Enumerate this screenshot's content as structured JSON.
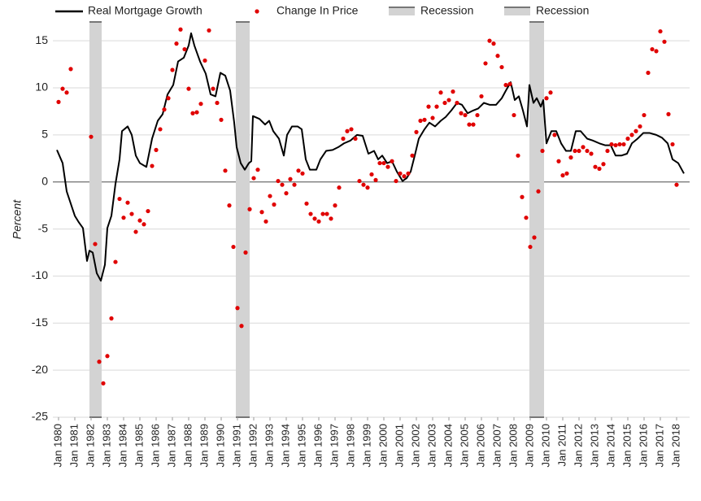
{
  "chart_data": {
    "type": "combo",
    "y_label": "Percent",
    "ylim": [
      -25,
      17
    ],
    "yticks": [
      -25,
      -20,
      -15,
      -10,
      -5,
      0,
      5,
      10,
      15
    ],
    "xlim": [
      1979.65,
      2018.8
    ],
    "xticks": [
      {
        "value": 1980,
        "label": "Jan 1980"
      },
      {
        "value": 1981,
        "label": "Jan 1981"
      },
      {
        "value": 1982,
        "label": "Jan 1982"
      },
      {
        "value": 1983,
        "label": "Jan 1983"
      },
      {
        "value": 1984,
        "label": "Jan 1984"
      },
      {
        "value": 1985,
        "label": "Jan 1985"
      },
      {
        "value": 1986,
        "label": "Jan 1986"
      },
      {
        "value": 1987,
        "label": "Jan 1987"
      },
      {
        "value": 1988,
        "label": "Jan 1988"
      },
      {
        "value": 1989,
        "label": "Jan 1989"
      },
      {
        "value": 1990,
        "label": "Jan 1990"
      },
      {
        "value": 1991,
        "label": "Jan 1991"
      },
      {
        "value": 1992,
        "label": "Jan 1992"
      },
      {
        "value": 1993,
        "label": "Jan 1993"
      },
      {
        "value": 1994,
        "label": "Jan 1994"
      },
      {
        "value": 1995,
        "label": "Jan 1995"
      },
      {
        "value": 1996,
        "label": "Jan 1996"
      },
      {
        "value": 1997,
        "label": "Jan 1997"
      },
      {
        "value": 1998,
        "label": "Jan 1998"
      },
      {
        "value": 1999,
        "label": "Jan 1999"
      },
      {
        "value": 2000,
        "label": "Jan 2000"
      },
      {
        "value": 2001,
        "label": "Jan 2001"
      },
      {
        "value": 2002,
        "label": "Jan 2002"
      },
      {
        "value": 2003,
        "label": "Jan 2003"
      },
      {
        "value": 2004,
        "label": "Jan 2004"
      },
      {
        "value": 2005,
        "label": "Jan 2005"
      },
      {
        "value": 2006,
        "label": "Jan 2006"
      },
      {
        "value": 2007,
        "label": "Jan 2007"
      },
      {
        "value": 2008,
        "label": "Jan 2008"
      },
      {
        "value": 2009,
        "label": "Jan 2009"
      },
      {
        "value": 2010,
        "label": "Jan 2010"
      },
      {
        "value": 2011,
        "label": "Jan 2011"
      },
      {
        "value": 2012,
        "label": "Jan 2012"
      },
      {
        "value": 2013,
        "label": "Jan 2013"
      },
      {
        "value": 2014,
        "label": "Jan 2014"
      },
      {
        "value": 2015,
        "label": "Jan 2015"
      },
      {
        "value": 2016,
        "label": "Jan 2016"
      },
      {
        "value": 2017,
        "label": "Jan 2017"
      },
      {
        "value": 2018,
        "label": "Jan 2018"
      }
    ],
    "grid": true,
    "recessions": [
      {
        "name": "Recession",
        "color": "#d3d3d3",
        "start": 1981.9,
        "end": 1982.65
      },
      {
        "name": "Recession",
        "color": "#d3d3d3",
        "start": 1990.9,
        "end": 1991.75
      },
      {
        "name": "Recession",
        "color": "#d3d3d3",
        "start": 2008.95,
        "end": 2009.85
      }
    ],
    "legend_recessions": [
      0,
      2
    ],
    "series": [
      {
        "name": "Real Mortgage Growth",
        "type": "line",
        "color": "#000000",
        "x": [
          1979.9,
          1980.25,
          1980.5,
          1980.75,
          1981.0,
          1981.25,
          1981.5,
          1981.75,
          1981.9,
          1982.1,
          1982.35,
          1982.6,
          1982.85,
          1983.0,
          1983.25,
          1983.5,
          1983.75,
          1983.9,
          1984.25,
          1984.5,
          1984.75,
          1985.0,
          1985.4,
          1985.75,
          1986.1,
          1986.4,
          1986.7,
          1987.05,
          1987.35,
          1987.7,
          1988.0,
          1988.15,
          1988.35,
          1988.7,
          1989.05,
          1989.35,
          1989.65,
          1989.95,
          1990.25,
          1990.55,
          1990.8,
          1990.95,
          1991.2,
          1991.45,
          1991.7,
          1991.85,
          1991.95,
          1992.35,
          1992.7,
          1992.95,
          1993.2,
          1993.55,
          1993.85,
          1994.05,
          1994.35,
          1994.7,
          1994.95,
          1995.2,
          1995.45,
          1995.85,
          1996.1,
          1996.45,
          1996.85,
          1997.2,
          1997.55,
          1997.95,
          1998.35,
          1998.7,
          1999.05,
          1999.4,
          1999.65,
          1999.9,
          2000.2,
          2000.5,
          2000.8,
          2001.15,
          2001.4,
          2001.65,
          2001.9,
          2002.15,
          2002.5,
          2002.8,
          2003.15,
          2003.5,
          2003.8,
          2004.15,
          2004.5,
          2004.8,
          2005.15,
          2005.5,
          2005.8,
          2006.15,
          2006.5,
          2006.9,
          2007.25,
          2007.5,
          2007.8,
          2008.05,
          2008.3,
          2008.55,
          2008.8,
          2008.95,
          2009.2,
          2009.4,
          2009.65,
          2009.8,
          2010.0,
          2010.3,
          2010.6,
          2010.9,
          2011.2,
          2011.5,
          2011.8,
          2012.1,
          2012.5,
          2012.85,
          2013.25,
          2013.6,
          2013.95,
          2014.25,
          2014.6,
          2014.95,
          2015.25,
          2015.6,
          2015.95,
          2016.35,
          2016.75,
          2017.1,
          2017.45,
          2017.75,
          2018.1,
          2018.45
        ],
        "values": [
          3.4,
          2.0,
          -1.0,
          -2.3,
          -3.6,
          -4.3,
          -4.9,
          -8.4,
          -7.3,
          -7.5,
          -9.7,
          -10.5,
          -8.8,
          -4.9,
          -3.6,
          -0.2,
          2.4,
          5.4,
          5.9,
          5.0,
          2.8,
          2.0,
          1.6,
          4.6,
          6.5,
          7.2,
          9.3,
          10.3,
          12.8,
          13.2,
          14.5,
          15.8,
          14.5,
          12.8,
          11.5,
          9.3,
          9.1,
          11.6,
          11.3,
          9.7,
          6.3,
          3.7,
          2.0,
          1.3,
          2.0,
          2.2,
          7.0,
          6.7,
          6.1,
          6.5,
          5.4,
          4.6,
          2.8,
          5.0,
          5.9,
          5.9,
          5.6,
          2.4,
          1.3,
          1.3,
          2.4,
          3.3,
          3.4,
          3.7,
          4.1,
          4.4,
          5.0,
          4.9,
          3.0,
          3.3,
          2.4,
          2.8,
          2.0,
          2.2,
          1.1,
          0.1,
          0.4,
          1.1,
          2.8,
          4.6,
          5.6,
          6.3,
          5.9,
          6.5,
          6.9,
          7.6,
          8.4,
          8.2,
          7.3,
          7.6,
          7.8,
          8.4,
          8.2,
          8.2,
          8.9,
          9.7,
          10.6,
          8.7,
          9.1,
          7.6,
          5.9,
          10.3,
          8.4,
          8.9,
          8.0,
          8.7,
          4.1,
          5.4,
          5.4,
          4.1,
          3.3,
          3.3,
          5.4,
          5.4,
          4.6,
          4.4,
          4.1,
          3.9,
          3.9,
          2.8,
          2.8,
          3.0,
          4.1,
          4.6,
          5.2,
          5.2,
          5.0,
          4.7,
          4.1,
          2.4,
          2.0,
          0.9
        ]
      },
      {
        "name": "Change In Price",
        "type": "scatter",
        "color": "#e00000",
        "x": [
          1980.0,
          1980.25,
          1980.5,
          1980.75,
          1982.0,
          1982.25,
          1982.5,
          1982.75,
          1983.0,
          1983.25,
          1983.5,
          1983.75,
          1984.0,
          1984.25,
          1984.5,
          1984.75,
          1985.0,
          1985.25,
          1985.5,
          1985.75,
          1986.0,
          1986.25,
          1986.5,
          1986.75,
          1987.0,
          1987.25,
          1987.5,
          1987.75,
          1988.0,
          1988.25,
          1988.5,
          1988.75,
          1989.0,
          1989.25,
          1989.5,
          1989.75,
          1990.0,
          1990.25,
          1990.5,
          1990.75,
          1991.0,
          1991.25,
          1991.5,
          1991.75,
          1992.0,
          1992.25,
          1992.5,
          1992.75,
          1993.0,
          1993.25,
          1993.5,
          1993.75,
          1994.0,
          1994.25,
          1994.5,
          1994.75,
          1995.0,
          1995.25,
          1995.5,
          1995.75,
          1996.0,
          1996.25,
          1996.5,
          1996.75,
          1997.0,
          1997.25,
          1997.5,
          1997.75,
          1998.0,
          1998.25,
          1998.5,
          1998.75,
          1999.0,
          1999.25,
          1999.5,
          1999.75,
          2000.0,
          2000.25,
          2000.5,
          2000.75,
          2001.0,
          2001.25,
          2001.5,
          2001.75,
          2002.0,
          2002.25,
          2002.5,
          2002.75,
          2003.0,
          2003.25,
          2003.5,
          2003.75,
          2004.0,
          2004.25,
          2004.5,
          2004.75,
          2005.0,
          2005.25,
          2005.5,
          2005.75,
          2006.0,
          2006.25,
          2006.5,
          2006.75,
          2007.0,
          2007.25,
          2007.5,
          2007.75,
          2008.0,
          2008.25,
          2008.5,
          2008.75,
          2009.0,
          2009.25,
          2009.5,
          2009.75,
          2010.0,
          2010.25,
          2010.5,
          2010.75,
          2011.0,
          2011.25,
          2011.5,
          2011.75,
          2012.0,
          2012.25,
          2012.5,
          2012.75,
          2013.0,
          2013.25,
          2013.5,
          2013.75,
          2014.0,
          2014.25,
          2014.5,
          2014.75,
          2015.0,
          2015.25,
          2015.5,
          2015.75,
          2016.0,
          2016.25,
          2016.5,
          2016.75,
          2017.0,
          2017.25,
          2017.5,
          2017.75,
          2018.0
        ],
        "values": [
          8.5,
          9.9,
          9.5,
          12.0,
          4.8,
          -6.6,
          -19.1,
          -21.4,
          -18.5,
          -14.5,
          -8.5,
          -1.8,
          -3.8,
          -2.2,
          -3.4,
          -5.3,
          -4.1,
          -4.5,
          -3.1,
          1.7,
          3.4,
          5.6,
          7.7,
          8.9,
          11.9,
          14.7,
          16.2,
          14.1,
          9.9,
          7.3,
          7.4,
          8.3,
          12.9,
          16.1,
          9.9,
          8.4,
          6.6,
          1.2,
          -2.5,
          -6.9,
          -13.4,
          -15.3,
          -7.5,
          -2.9,
          0.4,
          1.3,
          -3.2,
          -4.2,
          -1.5,
          -2.4,
          0.1,
          -0.3,
          -1.2,
          0.3,
          -0.3,
          1.2,
          0.9,
          -2.3,
          -3.4,
          -3.9,
          -4.2,
          -3.4,
          -3.4,
          -3.9,
          -2.5,
          -0.6,
          4.6,
          5.4,
          5.6,
          4.6,
          0.1,
          -0.3,
          -0.6,
          0.8,
          0.2,
          2.0,
          2.0,
          1.6,
          2.2,
          0.1,
          0.9,
          0.6,
          0.9,
          2.8,
          5.3,
          6.5,
          6.6,
          8.0,
          6.8,
          8.0,
          9.5,
          8.4,
          8.7,
          9.6,
          8.4,
          7.3,
          7.1,
          6.1,
          6.1,
          7.1,
          9.1,
          12.6,
          15.0,
          14.7,
          13.4,
          12.2,
          10.3,
          10.4,
          7.1,
          2.8,
          -1.6,
          -3.8,
          -6.9,
          -5.9,
          -1.0,
          3.3,
          8.9,
          9.5,
          5.0,
          2.2,
          0.7,
          0.9,
          2.6,
          3.3,
          3.3,
          3.7,
          3.3,
          3.0,
          1.6,
          1.4,
          1.9,
          3.3,
          4.0,
          3.9,
          4.0,
          4.0,
          4.6,
          5.0,
          5.4,
          5.9,
          7.1,
          11.6,
          14.1,
          13.9,
          16.0,
          14.9,
          7.2,
          4.0,
          -0.3
        ]
      }
    ]
  }
}
